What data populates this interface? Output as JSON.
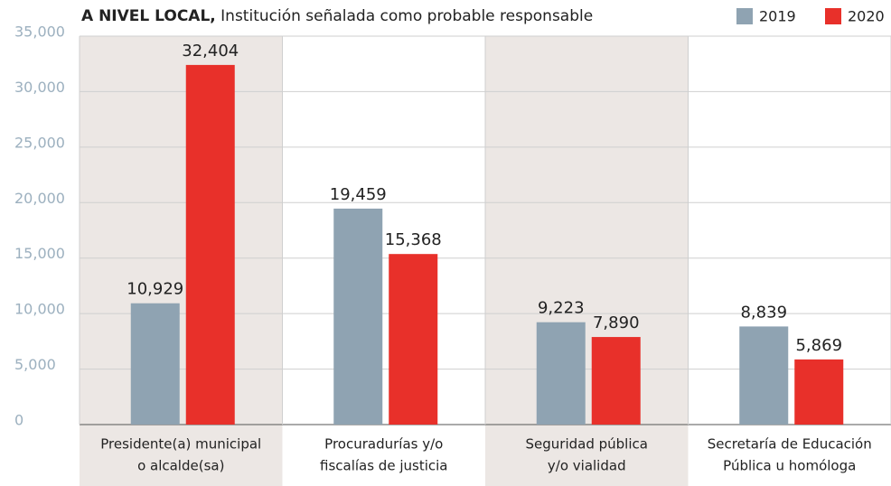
{
  "chart_data": {
    "type": "bar",
    "title_bold": "A NIVEL LOCAL,",
    "title": "Institución señalada como probable responsable",
    "categories": [
      [
        "Presidente(a) municipal",
        "o alcalde(sa)"
      ],
      [
        "Procuradurías y/o",
        "fiscalías de justicia"
      ],
      [
        "Seguridad pública",
        "y/o vialidad"
      ],
      [
        "Secretaría de Educación",
        "Pública u homóloga"
      ]
    ],
    "series": [
      {
        "name": "2019",
        "color": "#8fa3b2",
        "values": [
          10929,
          19459,
          9223,
          8839
        ],
        "value_labels": [
          "10,929",
          "19,459",
          "9,223",
          "8,839"
        ]
      },
      {
        "name": "2020",
        "color": "#e8302a",
        "values": [
          32404,
          15368,
          7890,
          5869
        ],
        "value_labels": [
          "32,404",
          "15,368",
          "7,890",
          "5,869"
        ]
      }
    ],
    "ylim": [
      0,
      35000
    ],
    "yticks": [
      0,
      {
        "value": 5000,
        "label": "5,000"
      },
      {
        "value": 10000,
        "label": "10,000"
      },
      {
        "value": 15000,
        "label": "15,000"
      },
      {
        "value": 20000,
        "label": "20,000"
      },
      {
        "value": 25000,
        "label": "25,000"
      },
      {
        "value": 30000,
        "label": "30,000"
      },
      {
        "value": 35000,
        "label": "35,000"
      }
    ],
    "grid": true,
    "legend": "top-right"
  }
}
